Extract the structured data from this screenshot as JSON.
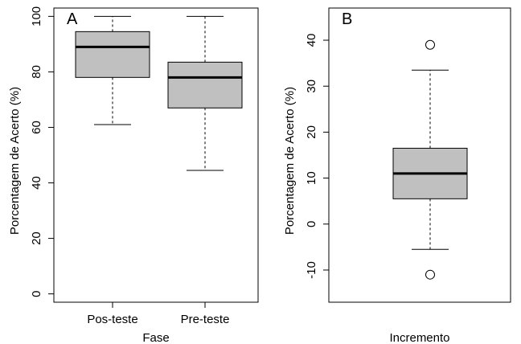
{
  "chart_data": [
    {
      "type": "boxplot",
      "panel_label": "A",
      "xlabel": "Fase",
      "ylabel": "Porcentagem de Acerto (%)",
      "ylim": [
        -3,
        103
      ],
      "yticks": [
        0,
        20,
        40,
        60,
        80,
        100
      ],
      "grid": false,
      "categories": [
        "Pos-teste",
        "Pre-teste"
      ],
      "boxes": [
        {
          "category": "Pos-teste",
          "whisker_low": 61,
          "q1": 78,
          "median": 89,
          "q3": 94.5,
          "whisker_high": 100,
          "outliers": []
        },
        {
          "category": "Pre-teste",
          "whisker_low": 44.5,
          "q1": 67,
          "median": 78,
          "q3": 83.5,
          "whisker_high": 100,
          "outliers": []
        }
      ]
    },
    {
      "type": "boxplot",
      "panel_label": "B",
      "xlabel": "Incremento",
      "ylabel": "Porcentagem de Acerto (%)",
      "ylim": [
        -17,
        47
      ],
      "yticks": [
        -10,
        0,
        10,
        20,
        30,
        40
      ],
      "grid": false,
      "categories": [
        ""
      ],
      "boxes": [
        {
          "category": "",
          "whisker_low": -5.5,
          "q1": 5.5,
          "median": 11,
          "q3": 16.5,
          "whisker_high": 33.5,
          "outliers": [
            39,
            -11
          ]
        }
      ]
    }
  ]
}
